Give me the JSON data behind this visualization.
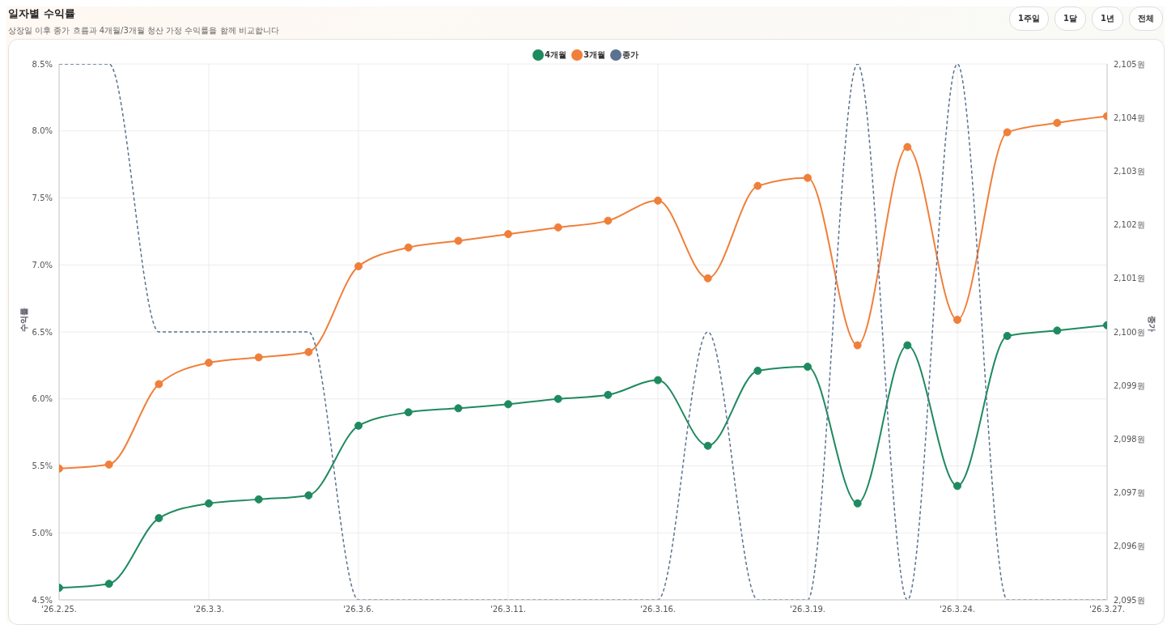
{
  "chart_data": {
    "type": "line",
    "title": "일자별 수익률",
    "subtitle": "상장일 이후 종가 흐름과 4개월/3개월 청산 가정 수익률을 함께 비교합니다",
    "annotations": [
      "1주일",
      "1달",
      "1년",
      "전체"
    ],
    "ylabel": "수익률",
    "y2label": "종가",
    "categories": [
      "'26.2.25.",
      null,
      null,
      "'26.3.3.",
      null,
      null,
      "'26.3.6.",
      null,
      null,
      "'26.3.11.",
      null,
      null,
      "'26.3.16.",
      null,
      null,
      "'26.3.19.",
      null,
      null,
      "'26.3.24.",
      null,
      null,
      "'26.3.27."
    ],
    "series": [
      {
        "name": "4개월",
        "color": "#1f8a5f",
        "values": [
          4.59,
          4.62,
          5.11,
          5.22,
          5.25,
          5.28,
          5.8,
          5.9,
          5.93,
          5.96,
          6.0,
          6.03,
          6.14,
          5.65,
          6.21,
          6.24,
          5.22,
          6.4,
          5.35,
          6.47,
          6.51,
          6.55
        ]
      },
      {
        "name": "3개월",
        "color": "#f07f3a",
        "values": [
          5.48,
          5.51,
          6.11,
          6.27,
          6.31,
          6.35,
          6.99,
          7.13,
          7.18,
          7.23,
          7.28,
          7.33,
          7.48,
          6.9,
          7.59,
          7.65,
          6.4,
          7.88,
          6.59,
          7.99,
          8.06,
          8.11
        ]
      },
      {
        "name": "종가",
        "color": "#5b7290",
        "axis": "y2",
        "marker": "none",
        "line_style": "dashed",
        "values": [
          2105,
          2105,
          2100,
          2100,
          2100,
          2100,
          2095,
          2095,
          2095,
          2095,
          2095,
          2095,
          2095,
          2100,
          2095,
          2095,
          2105,
          2095,
          2105,
          2095,
          2095,
          2095
        ]
      }
    ],
    "ylim": [
      4.5,
      8.5
    ],
    "yticks": [
      {
        "value": 4.5,
        "label": "4.5%"
      },
      {
        "value": 5,
        "label": "5.0%"
      },
      {
        "value": 5.5,
        "label": "5.5%"
      },
      {
        "value": 6,
        "label": "6.0%"
      },
      {
        "value": 6.5,
        "label": "6.5%"
      },
      {
        "value": 7,
        "label": "7.0%"
      },
      {
        "value": 7.5,
        "label": "7.5%"
      },
      {
        "value": 8,
        "label": "8.0%"
      },
      {
        "value": 8.5,
        "label": "8.5%"
      }
    ],
    "y2lim": [
      2095,
      2105
    ],
    "y2ticks": [
      {
        "value": 2095,
        "label": "2,095원"
      },
      {
        "value": 2096,
        "label": "2,096원"
      },
      {
        "value": 2097,
        "label": "2,097원"
      },
      {
        "value": 2098,
        "label": "2,098원"
      },
      {
        "value": 2099,
        "label": "2,099원"
      },
      {
        "value": 2100,
        "label": "2,100원"
      },
      {
        "value": 2101,
        "label": "2,101원"
      },
      {
        "value": 2102,
        "label": "2,102원"
      },
      {
        "value": 2103,
        "label": "2,103원"
      },
      {
        "value": 2104,
        "label": "2,104원"
      },
      {
        "value": 2105,
        "label": "2,105원"
      }
    ],
    "grid": true,
    "legend": "top",
    "marker": "circle",
    "line_style": "solid"
  }
}
